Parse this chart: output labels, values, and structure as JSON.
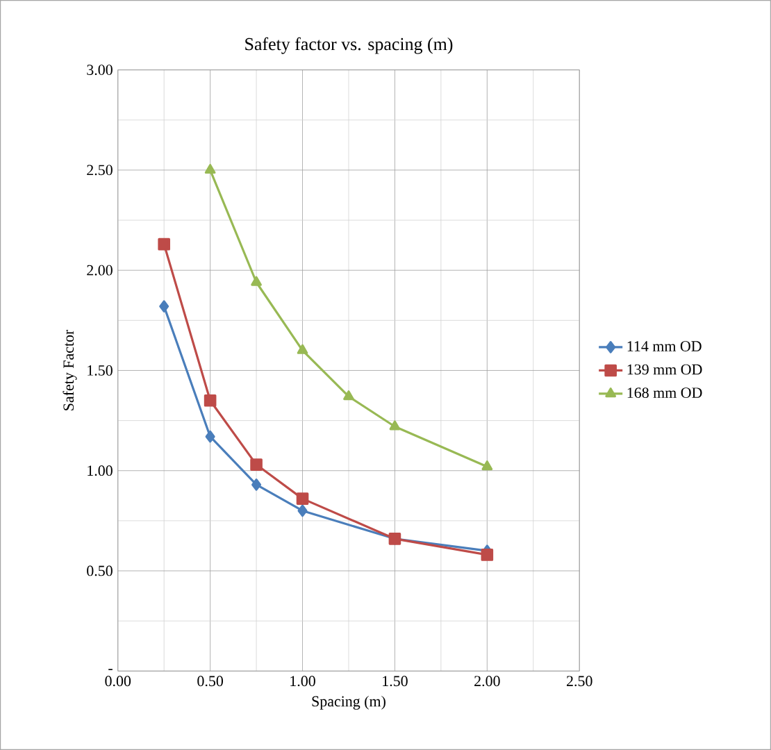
{
  "chart_data": {
    "type": "line",
    "title": "Safety factor vs. spacing (m)",
    "xlabel": "Spacing (m)",
    "ylabel": "Safety Factor",
    "xlim": [
      0,
      2.5
    ],
    "ylim": [
      0,
      3
    ],
    "xticks": [
      {
        "value": 0,
        "label": "0.00"
      },
      {
        "value": 0.5,
        "label": "0.50"
      },
      {
        "value": 1,
        "label": "1.00"
      },
      {
        "value": 1.5,
        "label": "1.50"
      },
      {
        "value": 2,
        "label": "2.00"
      },
      {
        "value": 2.5,
        "label": "2.50"
      }
    ],
    "yticks": [
      {
        "value": 0,
        "label": "-"
      },
      {
        "value": 0.5,
        "label": "0.50"
      },
      {
        "value": 1,
        "label": "1.00"
      },
      {
        "value": 1.5,
        "label": "1.50"
      },
      {
        "value": 2,
        "label": "2.00"
      },
      {
        "value": 2.5,
        "label": "2.50"
      },
      {
        "value": 3,
        "label": "3.00"
      }
    ],
    "grid": true,
    "legend": "right",
    "series": [
      {
        "name": "114 mm OD",
        "color": "#4a7ebb",
        "marker": "diamond",
        "x": [
          0.25,
          0.5,
          0.75,
          1.0,
          1.5,
          2.0
        ],
        "values": [
          1.82,
          1.17,
          0.93,
          0.8,
          0.66,
          0.6
        ]
      },
      {
        "name": "139 mm OD",
        "color": "#be4b48",
        "marker": "square",
        "x": [
          0.25,
          0.5,
          0.75,
          1.0,
          1.5,
          2.0
        ],
        "values": [
          2.13,
          1.35,
          1.03,
          0.86,
          0.66,
          0.58
        ]
      },
      {
        "name": "168 mm OD",
        "color": "#98b954",
        "marker": "triangle",
        "x": [
          0.5,
          0.75,
          1.0,
          1.25,
          1.5,
          2.0
        ],
        "values": [
          2.5,
          1.94,
          1.6,
          1.37,
          1.22,
          1.02
        ]
      }
    ]
  }
}
